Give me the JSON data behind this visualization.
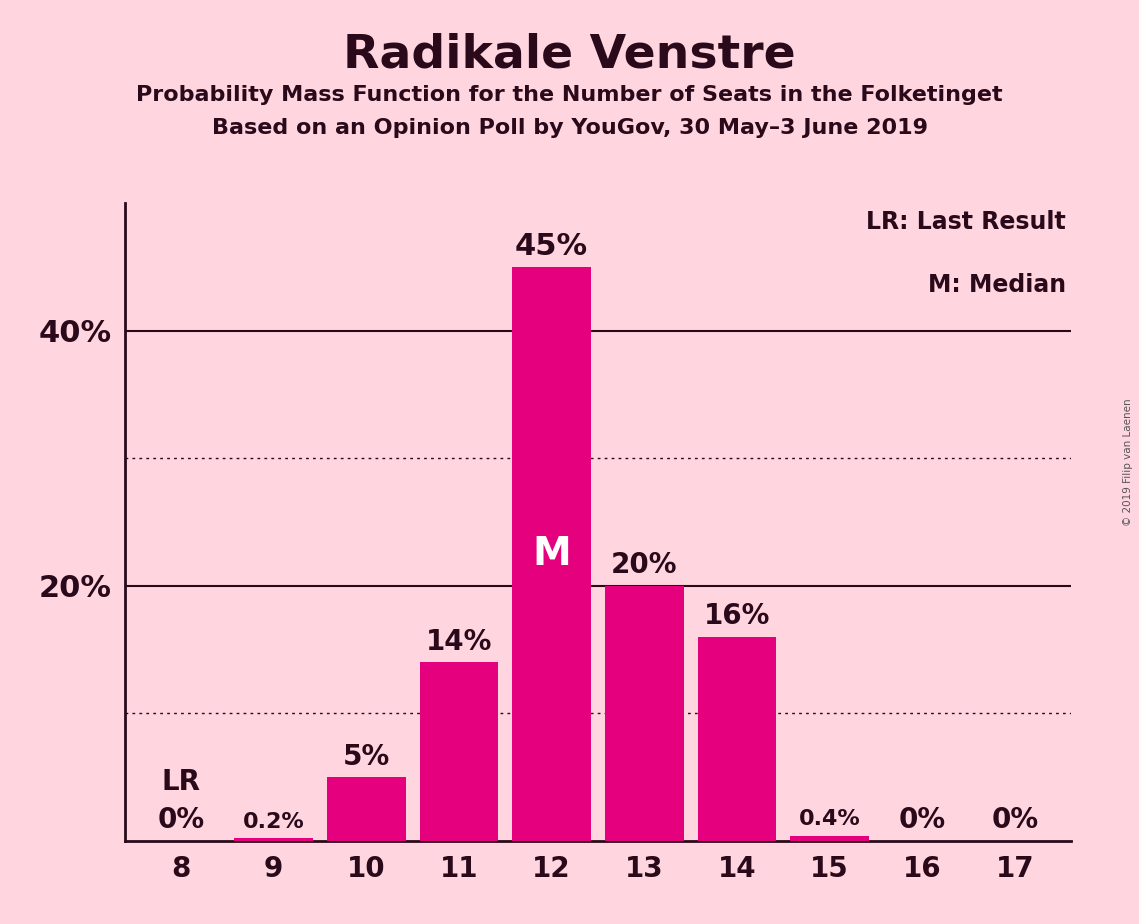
{
  "title": "Radikale Venstre",
  "subtitle1": "Probability Mass Function for the Number of Seats in the Folketinget",
  "subtitle2": "Based on an Opinion Poll by YouGov, 30 May–3 June 2019",
  "copyright": "© 2019 Filip van Laenen",
  "categories": [
    8,
    9,
    10,
    11,
    12,
    13,
    14,
    15,
    16,
    17
  ],
  "values": [
    0.0,
    0.2,
    5.0,
    14.0,
    45.0,
    20.0,
    16.0,
    0.4,
    0.0,
    0.0
  ],
  "labels": [
    "0%",
    "0.2%",
    "5%",
    "14%",
    "45%",
    "20%",
    "16%",
    "0.4%",
    "0%",
    "0%"
  ],
  "bar_color": "#E5007D",
  "background_color": "#FFD6E0",
  "text_color": "#2a0a1a",
  "median_bar": 12,
  "last_result_bar": 8,
  "legend_lr": "LR: Last Result",
  "legend_m": "M: Median",
  "median_label": "M",
  "lr_label": "LR",
  "ylim": [
    0,
    50
  ],
  "yticks": [
    0,
    20,
    40
  ],
  "ytick_labels": [
    "",
    "20%",
    "40%"
  ],
  "solid_gridlines": [
    20,
    40
  ],
  "dotted_gridlines": [
    10,
    30
  ],
  "figsize": [
    11.39,
    9.24
  ],
  "dpi": 100
}
